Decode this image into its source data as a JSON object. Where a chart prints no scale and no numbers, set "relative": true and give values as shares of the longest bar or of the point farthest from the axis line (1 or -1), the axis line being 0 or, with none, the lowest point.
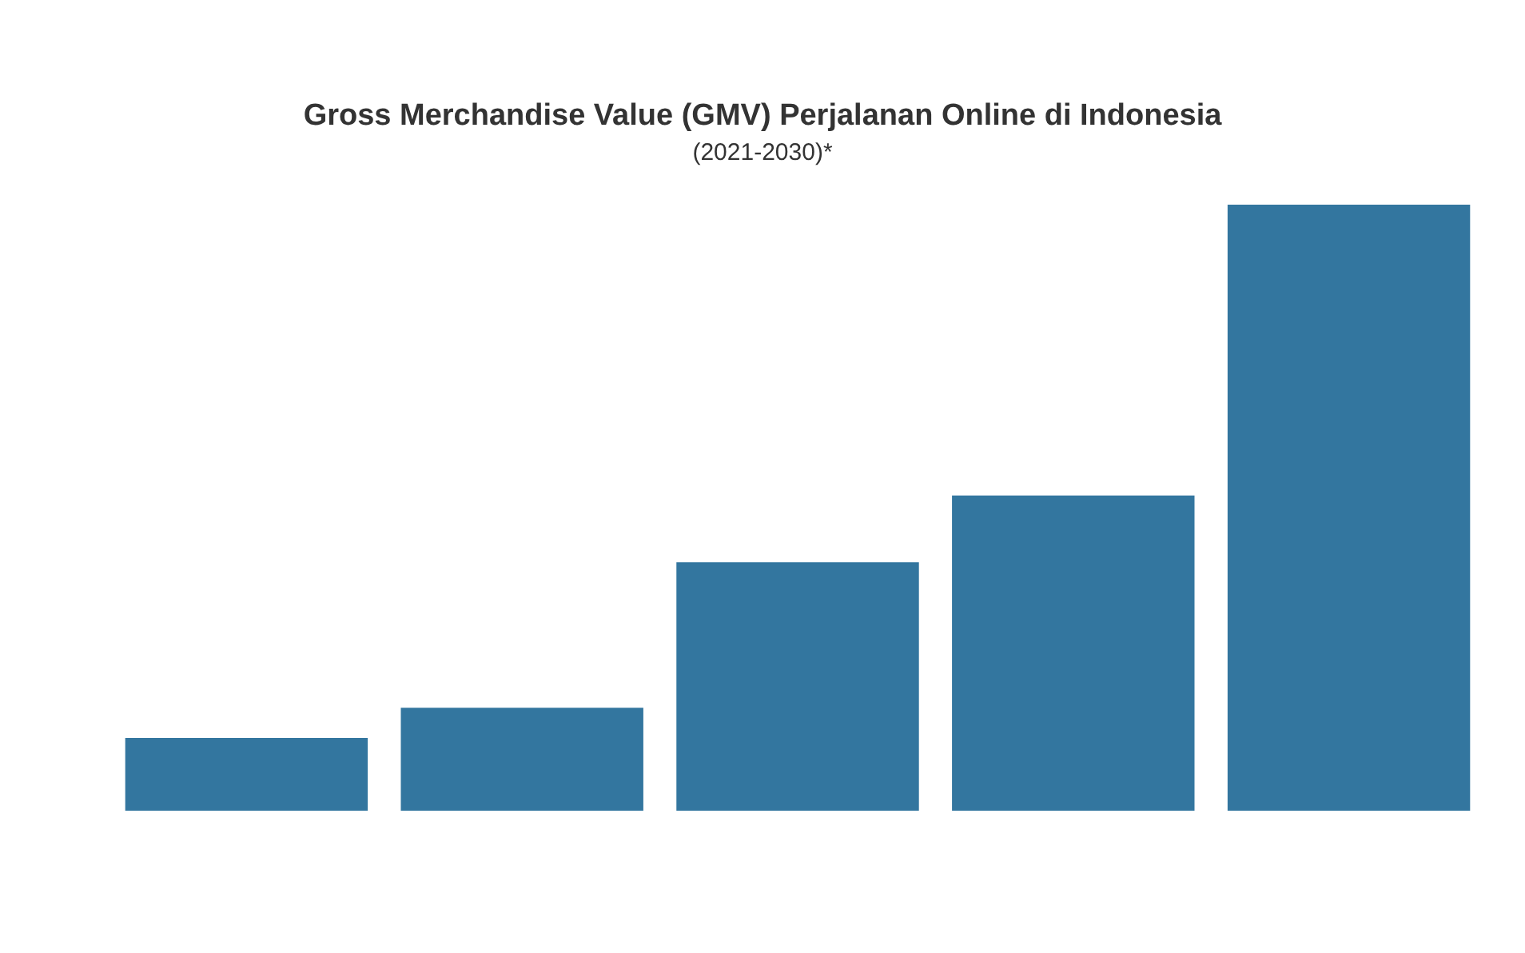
{
  "chart_data": {
    "type": "bar",
    "title": "Gross Merchandise Value (GMV) Perjalanan Online di Indonesia",
    "subtitle": "(2021-2030)*",
    "categories": [
      null,
      null,
      null,
      null,
      null
    ],
    "values": [
      0.12,
      0.17,
      0.41,
      0.52,
      1
    ],
    "color": "#33769f",
    "relative": true
  }
}
